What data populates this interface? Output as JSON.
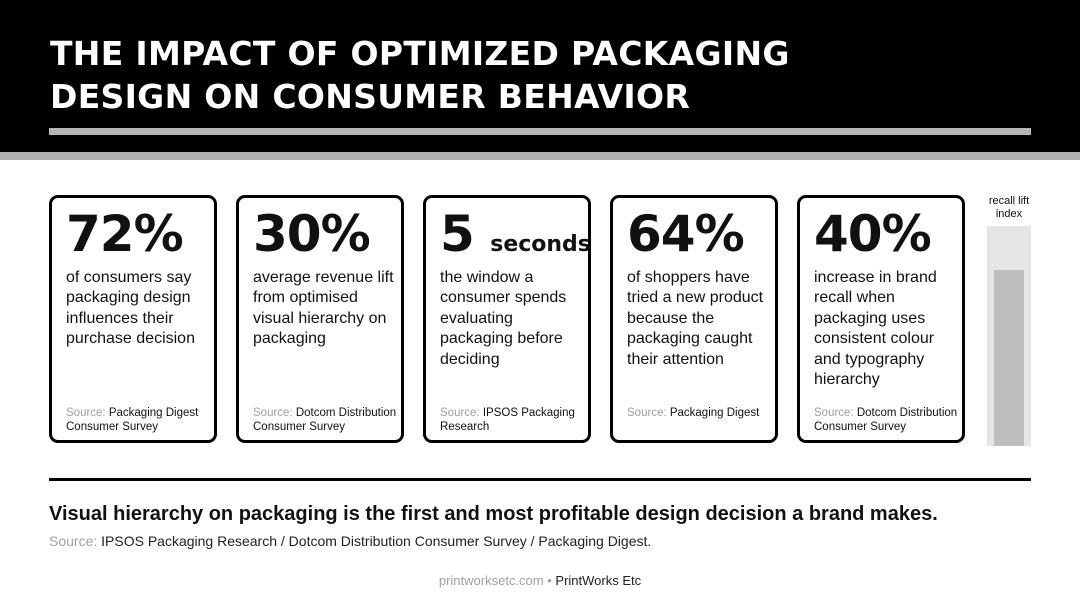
{
  "title": {
    "line1": "THE IMPACT OF OPTIMIZED PACKAGING",
    "line2": "DESIGN ON CONSUMER BEHAVIOR"
  },
  "colors": {
    "header_bg": "#000000",
    "accent_gray": "#b4b4b4",
    "text": "#111111",
    "muted": "#a0a0a0"
  },
  "cards": [
    {
      "stat": "72%",
      "stat_unit": "",
      "description": "of consumers say packaging design influences their purchase decision",
      "source_label": "Source:",
      "source": "Packaging Digest Consumer Survey"
    },
    {
      "stat": "30%",
      "stat_unit": "",
      "description": "average revenue lift from optimised visual hierarchy on packaging",
      "source_label": "Source:",
      "source": "Dotcom Distribution Consumer Survey"
    },
    {
      "stat": "5",
      "stat_unit": "seconds",
      "description": "the window a consumer spends evaluating packaging before deciding",
      "source_label": "Source:",
      "source": "IPSOS Packaging Research"
    },
    {
      "stat": "64%",
      "stat_unit": "",
      "description": "of shoppers have tried a new product because the packaging caught their attention",
      "source_label": "Source:",
      "source": "Packaging Digest"
    },
    {
      "stat": "40%",
      "stat_unit": "",
      "description": "increase in brand recall when packaging uses consistent colour and typography hierarchy",
      "source_label": "Source:",
      "source": "Dotcom Distribution Consumer Survey"
    }
  ],
  "chart_data": {
    "type": "bar",
    "label": "recall lift index",
    "value": 0.8,
    "ylim": [
      0,
      1
    ]
  },
  "takeaway": "Visual hierarchy on packaging is the first and most profitable design decision a brand makes.",
  "footnote": {
    "label": "Source:",
    "text": "IPSOS Packaging Research / Dotcom Distribution Consumer Survey / Packaging Digest."
  },
  "credit": {
    "url": "printworksetc.com",
    "separator": "•",
    "name": "PrintWorks Etc"
  }
}
